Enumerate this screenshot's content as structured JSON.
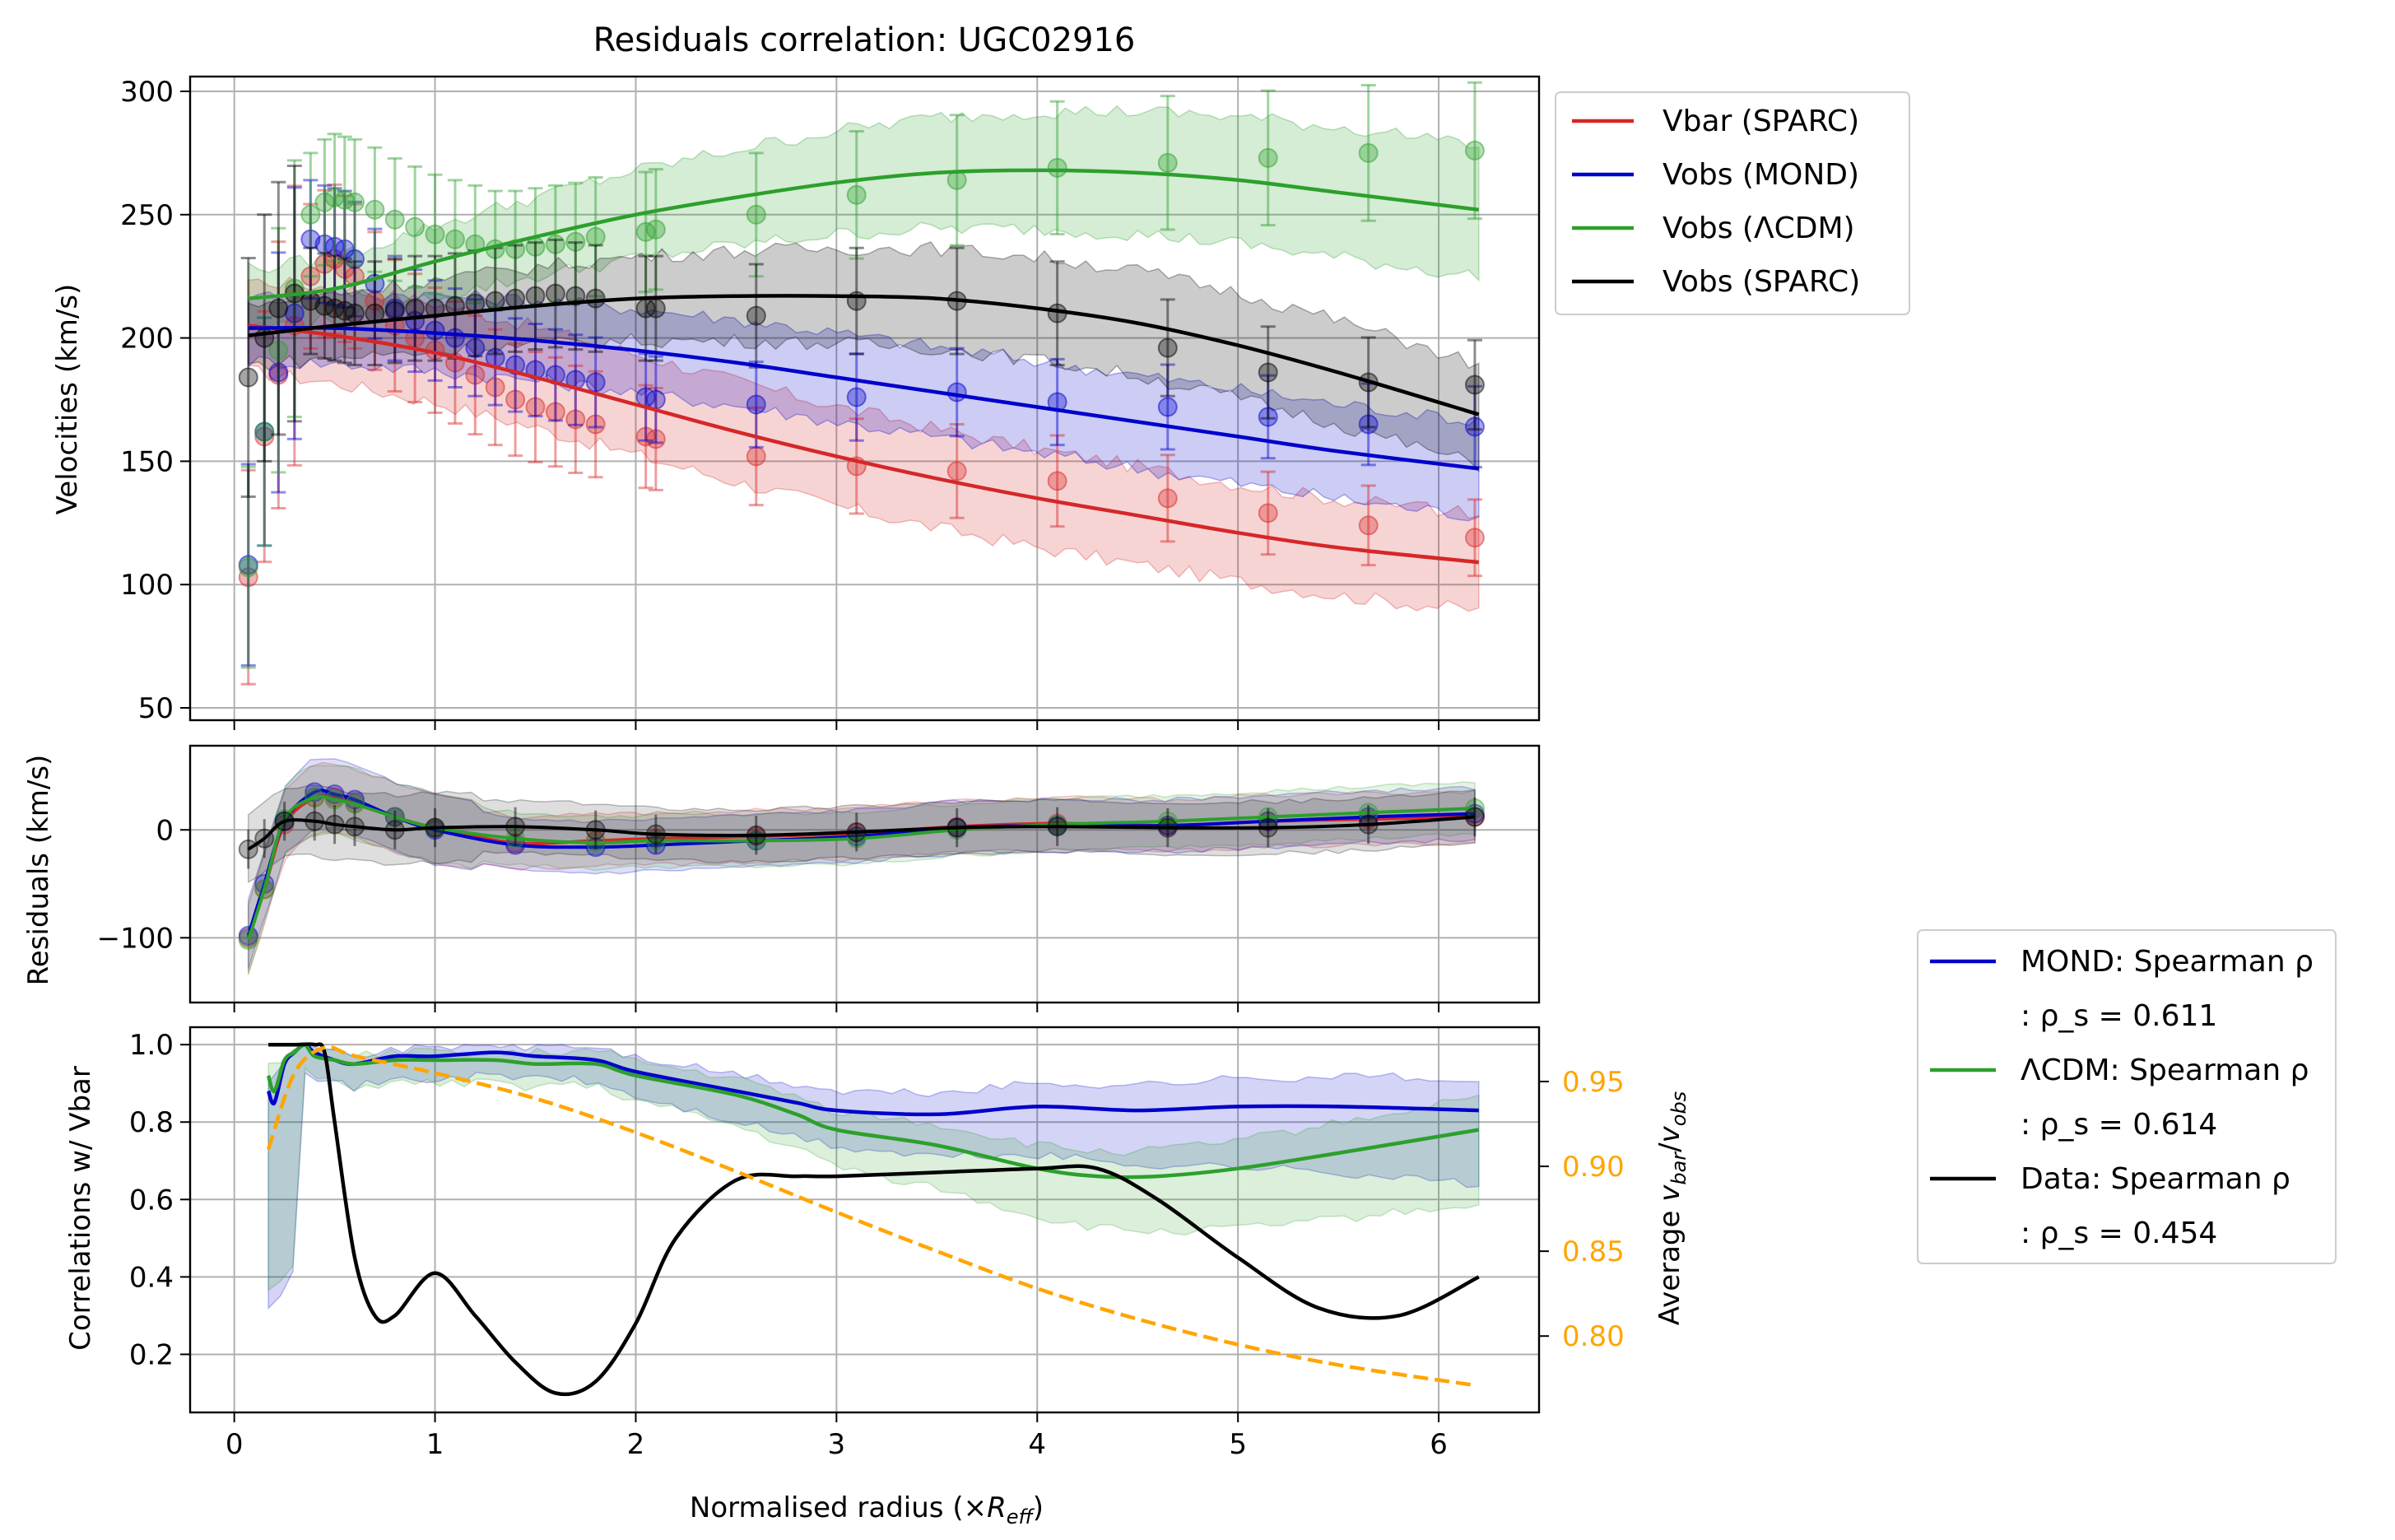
{
  "chart_data": [
    {
      "type": "line",
      "panel": "velocities",
      "title": "Residuals correlation: UGC02916",
      "ylabel": "Velocities (km/s)",
      "xlim": [
        -0.22,
        6.5
      ],
      "ylim": [
        45,
        306
      ],
      "x_ticks": [
        0,
        1,
        2,
        3,
        4,
        5,
        6
      ],
      "y_ticks": [
        50,
        100,
        150,
        200,
        250,
        300
      ],
      "grid": true,
      "legend_position": "outside-right-top",
      "legend": [
        "Vbar (SPARC)",
        "Vobs (MOND)",
        "Vobs (ΛCDM)",
        "Vobs (SPARC)"
      ],
      "series": [
        {
          "name": "Vbar (SPARC)",
          "color": "#d62728",
          "x": [
            0.07,
            0.15,
            0.22,
            0.3,
            0.38,
            0.45,
            0.5,
            0.55,
            0.6,
            0.7,
            0.8,
            0.9,
            1.0,
            1.1,
            1.2,
            1.3,
            1.4,
            1.5,
            1.6,
            1.7,
            1.8,
            2.05,
            2.1,
            2.6,
            3.1,
            3.6,
            4.1,
            4.65,
            5.15,
            5.65,
            6.18
          ],
          "y": [
            103,
            160,
            185,
            205,
            225,
            230,
            232,
            228,
            225,
            215,
            205,
            200,
            195,
            190,
            185,
            180,
            175,
            172,
            170,
            167,
            165,
            160,
            159,
            152,
            148,
            146,
            142,
            135,
            129,
            124,
            119
          ],
          "fit_x": [
            0.07,
            0.5,
            1.0,
            1.5,
            2.0,
            2.5,
            3.0,
            3.5,
            4.0,
            4.5,
            5.0,
            5.5,
            6.2
          ],
          "fit_y": [
            205,
            201,
            194,
            184,
            173,
            162,
            152,
            143,
            135,
            128,
            121,
            115,
            109
          ]
        },
        {
          "name": "Vobs (MOND)",
          "color": "#0000cc",
          "x": [
            0.07,
            0.15,
            0.22,
            0.3,
            0.38,
            0.45,
            0.5,
            0.55,
            0.6,
            0.7,
            0.8,
            0.9,
            1.0,
            1.1,
            1.2,
            1.3,
            1.4,
            1.5,
            1.6,
            1.7,
            1.8,
            2.05,
            2.1,
            2.6,
            3.1,
            3.6,
            4.1,
            4.65,
            5.15,
            5.65,
            6.18
          ],
          "y": [
            108,
            162,
            186,
            210,
            240,
            238,
            237,
            236,
            232,
            222,
            212,
            207,
            203,
            200,
            196,
            192,
            189,
            187,
            185,
            183,
            182,
            176,
            175,
            173,
            176,
            178,
            174,
            172,
            168,
            165,
            164
          ],
          "fit_x": [
            0.07,
            0.5,
            1.0,
            1.5,
            2.0,
            2.5,
            3.0,
            3.5,
            4.0,
            4.5,
            5.0,
            5.5,
            6.2
          ],
          "fit_y": [
            204,
            204,
            202,
            199,
            195,
            190,
            184,
            178,
            172,
            166,
            160,
            154,
            147
          ]
        },
        {
          "name": "Vobs (ΛCDM)",
          "color": "#2ca02c",
          "x": [
            0.07,
            0.15,
            0.22,
            0.3,
            0.38,
            0.45,
            0.5,
            0.55,
            0.6,
            0.7,
            0.8,
            0.9,
            1.0,
            1.1,
            1.2,
            1.3,
            1.4,
            1.5,
            1.6,
            1.7,
            1.8,
            2.05,
            2.1,
            2.6,
            3.1,
            3.6,
            4.1,
            4.65,
            5.15,
            5.65,
            6.18
          ],
          "y": [
            107,
            162,
            195,
            220,
            250,
            255,
            257,
            256,
            255,
            252,
            248,
            245,
            242,
            240,
            238,
            236,
            236,
            237,
            238,
            239,
            241,
            243,
            244,
            250,
            258,
            264,
            269,
            271,
            273,
            275,
            276
          ],
          "fit_x": [
            0.07,
            0.5,
            1.0,
            1.5,
            2.0,
            2.5,
            3.0,
            3.5,
            4.0,
            4.5,
            5.0,
            5.5,
            6.2
          ],
          "fit_y": [
            216,
            220,
            231,
            241,
            250,
            257,
            263,
            267,
            268,
            267,
            264,
            259,
            252
          ]
        },
        {
          "name": "Vobs (SPARC)",
          "color": "#000000",
          "x": [
            0.07,
            0.15,
            0.22,
            0.3,
            0.38,
            0.45,
            0.5,
            0.55,
            0.6,
            0.7,
            0.8,
            0.9,
            1.0,
            1.1,
            1.2,
            1.3,
            1.4,
            1.5,
            1.6,
            1.7,
            1.8,
            2.05,
            2.1,
            2.6,
            3.1,
            3.6,
            4.1,
            4.65,
            5.15,
            5.65,
            6.18
          ],
          "y": [
            184,
            200,
            212,
            218,
            215,
            213,
            212,
            211,
            210,
            210,
            211,
            212,
            212,
            213,
            214,
            215,
            216,
            217,
            218,
            217,
            216,
            212,
            212,
            209,
            215,
            215,
            210,
            196,
            186,
            182,
            181
          ],
          "fit_x": [
            0.07,
            0.5,
            1.0,
            1.5,
            2.0,
            2.5,
            3.0,
            3.5,
            4.0,
            4.5,
            5.0,
            5.5,
            6.2
          ],
          "fit_y": [
            201,
            205,
            209,
            213,
            216,
            217,
            217,
            216,
            212,
            206,
            197,
            186,
            169
          ]
        }
      ]
    },
    {
      "type": "line",
      "panel": "residuals",
      "ylabel": "Residuals (km/s)",
      "xlim": [
        -0.22,
        6.5
      ],
      "ylim": [
        -160,
        78
      ],
      "y_ticks": [
        -100,
        0
      ],
      "grid": true,
      "series": [
        {
          "name": "Vbar (SPARC)",
          "color": "#d62728",
          "x": [
            0.07,
            0.15,
            0.25,
            0.4,
            0.5,
            0.6,
            0.8,
            1.0,
            1.4,
            1.8,
            2.1,
            2.6,
            3.1,
            3.6,
            4.1,
            4.65,
            5.15,
            5.65,
            6.18
          ],
          "y": [
            -100,
            -55,
            5,
            30,
            30,
            25,
            12,
            2,
            -12,
            -10,
            -8,
            -6,
            -3,
            3,
            6,
            4,
            8,
            10,
            12
          ]
        },
        {
          "name": "Vobs (MOND)",
          "color": "#0000cc",
          "x": [
            0.07,
            0.15,
            0.25,
            0.4,
            0.5,
            0.6,
            0.8,
            1.0,
            1.4,
            1.8,
            2.1,
            2.6,
            3.1,
            3.6,
            4.1,
            4.65,
            5.15,
            5.65,
            6.18
          ],
          "y": [
            -98,
            -50,
            8,
            35,
            33,
            28,
            12,
            0,
            -14,
            -16,
            -14,
            -10,
            -6,
            2,
            4,
            4,
            8,
            12,
            15
          ]
        },
        {
          "name": "Vobs (ΛCDM)",
          "color": "#2ca02c",
          "x": [
            0.07,
            0.15,
            0.25,
            0.4,
            0.5,
            0.6,
            0.8,
            1.0,
            1.4,
            1.8,
            2.1,
            2.6,
            3.1,
            3.6,
            4.1,
            4.65,
            5.15,
            5.65,
            6.18
          ],
          "y": [
            -102,
            -55,
            10,
            30,
            28,
            24,
            12,
            2,
            -8,
            -12,
            -10,
            -10,
            -8,
            0,
            5,
            8,
            12,
            16,
            20
          ]
        },
        {
          "name": "Vobs (SPARC)",
          "color": "#000000",
          "x": [
            0.07,
            0.15,
            0.25,
            0.4,
            0.5,
            0.6,
            0.8,
            1.0,
            1.4,
            1.8,
            2.1,
            2.6,
            3.1,
            3.6,
            4.1,
            4.65,
            5.15,
            5.65,
            6.18
          ],
          "y": [
            -18,
            -8,
            8,
            8,
            5,
            3,
            0,
            2,
            3,
            0,
            -4,
            -5,
            -2,
            2,
            3,
            2,
            2,
            5,
            12
          ]
        }
      ]
    },
    {
      "type": "line",
      "panel": "correlations",
      "ylabel": "Correlations w/ Vbar",
      "xlabel": "Normalised radius (×R_eff)",
      "xlim": [
        -0.22,
        6.5
      ],
      "ylim": [
        0.05,
        1.045
      ],
      "y_ticks": [
        0.2,
        0.4,
        0.6,
        0.8,
        1.0
      ],
      "right_axis": {
        "ylabel": "Average v_bar/v_obs",
        "ylim": [
          0.755,
          0.982
        ],
        "ticks": [
          0.8,
          0.85,
          0.9,
          0.95
        ],
        "color": "#ffa500"
      },
      "grid": true,
      "legend_position": "outside-right",
      "legend": [
        "MOND: Spearman ρ",
        ": ρ_s = 0.611",
        "ΛCDM: Spearman ρ",
        ": ρ_s = 0.614",
        "Data: Spearman ρ",
        ": ρ_s = 0.454"
      ],
      "series": [
        {
          "name": "MOND: Spearman ρ",
          "color": "#0000cc",
          "x": [
            0.17,
            0.2,
            0.25,
            0.3,
            0.35,
            0.4,
            0.5,
            0.6,
            0.8,
            1.0,
            1.3,
            1.5,
            1.8,
            2.0,
            2.5,
            2.8,
            3.0,
            3.5,
            4.0,
            4.5,
            5.0,
            5.5,
            6.2
          ],
          "y": [
            0.88,
            0.85,
            0.95,
            0.98,
            1.0,
            0.98,
            0.96,
            0.95,
            0.97,
            0.97,
            0.98,
            0.97,
            0.96,
            0.93,
            0.88,
            0.85,
            0.83,
            0.82,
            0.84,
            0.83,
            0.84,
            0.84,
            0.83
          ]
        },
        {
          "name": "ΛCDM: Spearman ρ",
          "color": "#2ca02c",
          "x": [
            0.17,
            0.2,
            0.25,
            0.3,
            0.35,
            0.4,
            0.5,
            0.6,
            0.8,
            1.0,
            1.3,
            1.5,
            1.8,
            2.0,
            2.5,
            2.8,
            3.0,
            3.5,
            4.0,
            4.3,
            4.6,
            5.0,
            5.5,
            6.2
          ],
          "y": [
            0.92,
            0.88,
            0.96,
            0.98,
            1.0,
            0.97,
            0.96,
            0.95,
            0.96,
            0.96,
            0.96,
            0.95,
            0.95,
            0.92,
            0.87,
            0.82,
            0.78,
            0.74,
            0.68,
            0.66,
            0.66,
            0.68,
            0.72,
            0.78
          ]
        },
        {
          "name": "Data: Spearman ρ",
          "color": "#000000",
          "x": [
            0.17,
            0.3,
            0.4,
            0.45,
            0.5,
            0.6,
            0.7,
            0.8,
            1.0,
            1.2,
            1.4,
            1.6,
            1.8,
            2.0,
            2.2,
            2.5,
            2.8,
            3.0,
            3.5,
            4.0,
            4.3,
            4.6,
            5.0,
            5.4,
            5.8,
            6.2
          ],
          "y": [
            1.0,
            1.0,
            1.0,
            0.98,
            0.8,
            0.45,
            0.3,
            0.3,
            0.41,
            0.3,
            0.18,
            0.1,
            0.13,
            0.28,
            0.5,
            0.65,
            0.66,
            0.66,
            0.67,
            0.68,
            0.68,
            0.6,
            0.45,
            0.32,
            0.3,
            0.4
          ]
        },
        {
          "name": "Average v_bar/v_obs",
          "color": "#ffa500",
          "axis": "right",
          "style": "dashed",
          "x": [
            0.17,
            0.3,
            0.45,
            0.6,
            1.0,
            1.5,
            2.0,
            2.5,
            3.0,
            3.5,
            4.0,
            4.5,
            5.0,
            5.5,
            6.18
          ],
          "y": [
            0.91,
            0.955,
            0.97,
            0.965,
            0.955,
            0.94,
            0.92,
            0.897,
            0.873,
            0.85,
            0.828,
            0.81,
            0.795,
            0.783,
            0.771
          ]
        }
      ]
    }
  ]
}
